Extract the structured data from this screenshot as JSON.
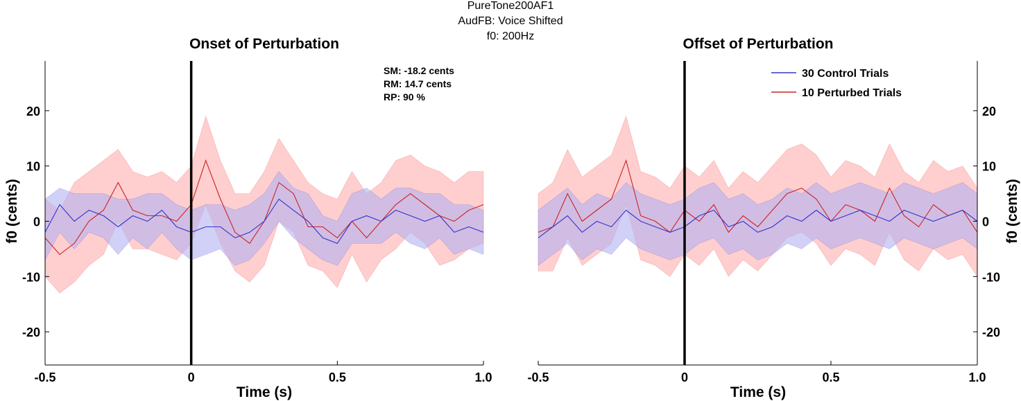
{
  "figure_title": [
    "PureTone200AF1",
    "AudFB: Voice Shifted",
    "f0: 200Hz"
  ],
  "colors": {
    "control": "#3333cc",
    "perturbed": "#cc2222",
    "control_band": "#b3b3f2",
    "perturbed_band": "#ffb3b3",
    "marker": "#000000"
  },
  "legend": {
    "control_label": "30 Control Trials",
    "perturbed_label": "10 Perturbed Trials",
    "placement": "top-right of right panel"
  },
  "stats": [
    "SM: -18.2 cents",
    "RM: 14.7 cents",
    "RP: 90 %"
  ],
  "chart_data": [
    {
      "type": "line",
      "title": "Onset of Perturbation",
      "xlabel": "Time (s)",
      "ylabel": "f0 (cents)",
      "xlim": [
        -0.5,
        1.0
      ],
      "ylim": [
        -26,
        29
      ],
      "xticks": [
        -0.5,
        0,
        0.5,
        1.0
      ],
      "xtick_labels": [
        "-0.5",
        "0",
        "0.5",
        "1.0"
      ],
      "yticks": [
        -20,
        -10,
        0,
        10,
        20
      ],
      "ytick_labels": [
        "-20",
        "-10",
        "0",
        "10",
        "20"
      ],
      "event_line_x": 0,
      "x": [
        -0.5,
        -0.45,
        -0.4,
        -0.35,
        -0.3,
        -0.25,
        -0.2,
        -0.15,
        -0.1,
        -0.05,
        0.0,
        0.05,
        0.1,
        0.15,
        0.2,
        0.25,
        0.3,
        0.35,
        0.4,
        0.45,
        0.5,
        0.55,
        0.6,
        0.65,
        0.7,
        0.75,
        0.8,
        0.85,
        0.9,
        0.95,
        1.0
      ],
      "series": [
        {
          "name": "30 Control Trials",
          "values": [
            -2,
            3,
            0,
            2,
            1,
            -1,
            1,
            0,
            2,
            -1,
            -2,
            -1,
            -1,
            -3,
            -2,
            0,
            4,
            2,
            0,
            -3,
            -4,
            0,
            1,
            0,
            2,
            1,
            0,
            1,
            -2,
            -1,
            -2
          ],
          "upper": [
            4,
            6,
            5,
            5,
            5,
            4,
            4,
            5,
            5,
            3,
            2,
            3,
            3,
            2,
            3,
            5,
            9,
            6,
            5,
            1,
            0,
            5,
            6,
            4,
            6,
            6,
            5,
            5,
            3,
            3,
            2
          ],
          "lower": [
            -7,
            -2,
            -5,
            -2,
            -3,
            -6,
            -3,
            -5,
            -2,
            -5,
            -7,
            -6,
            -5,
            -8,
            -7,
            -4,
            0,
            -3,
            -5,
            -7,
            -8,
            -4,
            -4,
            -4,
            -2,
            -4,
            -5,
            -3,
            -6,
            -5,
            -6
          ]
        },
        {
          "name": "10 Perturbed Trials",
          "values": [
            -3,
            -6,
            -4,
            0,
            2,
            7,
            2,
            1,
            1,
            0,
            3,
            11,
            4,
            -2,
            -4,
            0,
            7,
            5,
            -1,
            -1,
            -3,
            0,
            -3,
            0,
            3,
            5,
            3,
            1,
            0,
            2,
            3
          ],
          "upper": [
            4,
            2,
            7,
            9,
            11,
            13,
            9,
            8,
            9,
            7,
            10,
            19,
            11,
            5,
            5,
            9,
            15,
            11,
            7,
            5,
            4,
            9,
            5,
            7,
            11,
            12,
            10,
            9,
            7,
            9,
            9
          ],
          "lower": [
            -10,
            -13,
            -11,
            -8,
            -6,
            0,
            -5,
            -5,
            -6,
            -7,
            -4,
            3,
            -4,
            -9,
            -11,
            -8,
            0,
            -2,
            -8,
            -9,
            -12,
            -6,
            -11,
            -7,
            -5,
            -2,
            -4,
            -8,
            -7,
            -5,
            -4
          ]
        }
      ]
    },
    {
      "type": "line",
      "title": "Offset of Perturbation",
      "xlabel": "Time (s)",
      "ylabel": "f0 (cents)",
      "xlim": [
        -0.5,
        1.0
      ],
      "ylim": [
        -26,
        29
      ],
      "xticks": [
        -0.5,
        0,
        0.5,
        1.0
      ],
      "xtick_labels": [
        "-0.5",
        "0",
        "0.5",
        "1.0"
      ],
      "yticks": [
        -20,
        -10,
        0,
        10,
        20
      ],
      "ytick_labels": [
        "-20",
        "-10",
        "0",
        "10",
        "20"
      ],
      "event_line_x": 0,
      "x": [
        -0.5,
        -0.45,
        -0.4,
        -0.35,
        -0.3,
        -0.25,
        -0.2,
        -0.15,
        -0.1,
        -0.05,
        0.0,
        0.05,
        0.1,
        0.15,
        0.2,
        0.25,
        0.3,
        0.35,
        0.4,
        0.45,
        0.5,
        0.55,
        0.6,
        0.65,
        0.7,
        0.75,
        0.8,
        0.85,
        0.9,
        0.95,
        1.0
      ],
      "series": [
        {
          "name": "30 Control Trials",
          "values": [
            -3,
            -1,
            1,
            -2,
            0,
            -1,
            2,
            0,
            -1,
            -2,
            -1,
            1,
            2,
            -1,
            0,
            -2,
            -1,
            1,
            0,
            2,
            0,
            1,
            2,
            1,
            0,
            2,
            1,
            0,
            1,
            2,
            0
          ],
          "upper": [
            2,
            4,
            6,
            3,
            5,
            4,
            7,
            5,
            4,
            3,
            4,
            6,
            7,
            4,
            5,
            3,
            4,
            6,
            5,
            7,
            5,
            6,
            7,
            6,
            5,
            7,
            6,
            5,
            6,
            7,
            5
          ],
          "lower": [
            -8,
            -6,
            -4,
            -7,
            -5,
            -6,
            -3,
            -5,
            -6,
            -7,
            -6,
            -4,
            -3,
            -6,
            -5,
            -7,
            -6,
            -4,
            -5,
            -3,
            -5,
            -4,
            -3,
            -4,
            -5,
            -3,
            -4,
            -5,
            -4,
            -3,
            -5
          ]
        },
        {
          "name": "10 Perturbed Trials",
          "values": [
            -2,
            -1,
            5,
            0,
            2,
            4,
            11,
            1,
            0,
            -2,
            2,
            0,
            3,
            -2,
            1,
            -1,
            2,
            5,
            6,
            4,
            0,
            3,
            2,
            0,
            6,
            1,
            -1,
            3,
            1,
            2,
            -2
          ],
          "upper": [
            5,
            7,
            13,
            8,
            10,
            12,
            19,
            9,
            8,
            6,
            10,
            8,
            11,
            6,
            9,
            7,
            10,
            13,
            14,
            12,
            8,
            11,
            10,
            8,
            14,
            9,
            7,
            11,
            9,
            10,
            6
          ],
          "lower": [
            -9,
            -9,
            -3,
            -8,
            -6,
            -4,
            3,
            -7,
            -8,
            -10,
            -6,
            -8,
            -5,
            -10,
            -7,
            -9,
            -6,
            -3,
            -2,
            -4,
            -8,
            -5,
            -6,
            -8,
            -2,
            -7,
            -9,
            -5,
            -7,
            -6,
            -10
          ]
        }
      ]
    }
  ]
}
